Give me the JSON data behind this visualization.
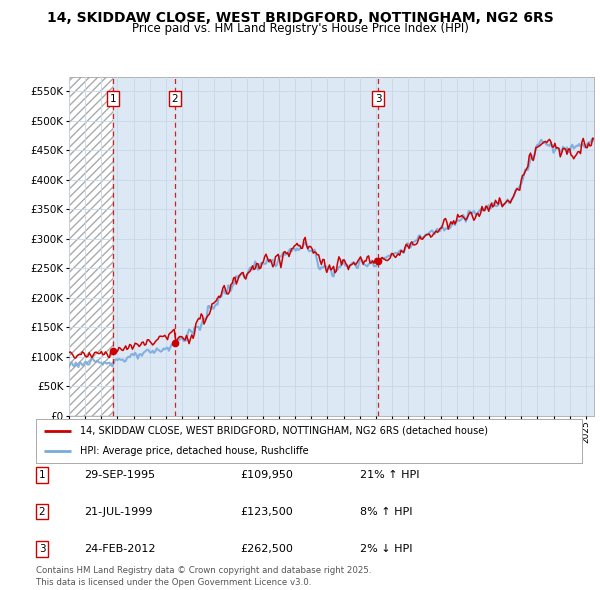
{
  "title_line1": "14, SKIDDAW CLOSE, WEST BRIDGFORD, NOTTINGHAM, NG2 6RS",
  "title_line2": "Price paid vs. HM Land Registry's House Price Index (HPI)",
  "background_color": "#ffffff",
  "plot_bg_color": "#dce9f5",
  "hatch_region_end_year": 1995.75,
  "sale_dates": [
    1995.747,
    1999.554,
    2012.146
  ],
  "sale_prices": [
    109950,
    123500,
    262500
  ],
  "sale_labels": [
    "1",
    "2",
    "3"
  ],
  "legend_line1": "14, SKIDDAW CLOSE, WEST BRIDGFORD, NOTTINGHAM, NG2 6RS (detached house)",
  "legend_line2": "HPI: Average price, detached house, Rushcliffe",
  "table_entries": [
    {
      "label": "1",
      "date": "29-SEP-1995",
      "price": "£109,950",
      "pct": "21% ↑ HPI"
    },
    {
      "label": "2",
      "date": "21-JUL-1999",
      "price": "£123,500",
      "pct": "8% ↑ HPI"
    },
    {
      "label": "3",
      "date": "24-FEB-2012",
      "price": "£262,500",
      "pct": "2% ↓ HPI"
    }
  ],
  "footer": "Contains HM Land Registry data © Crown copyright and database right 2025.\nThis data is licensed under the Open Government Licence v3.0.",
  "red_line_color": "#cc0000",
  "blue_line_color": "#7aaadd",
  "marker_color": "#cc0000",
  "vline_color": "#cc0000",
  "grid_color": "#c8d8e8",
  "hatch_color": "#aaaaaa",
  "ylim": [
    0,
    575000
  ],
  "yticks": [
    0,
    50000,
    100000,
    150000,
    200000,
    250000,
    300000,
    350000,
    400000,
    450000,
    500000,
    550000
  ],
  "xlim_start": 1993.0,
  "xlim_end": 2025.5
}
